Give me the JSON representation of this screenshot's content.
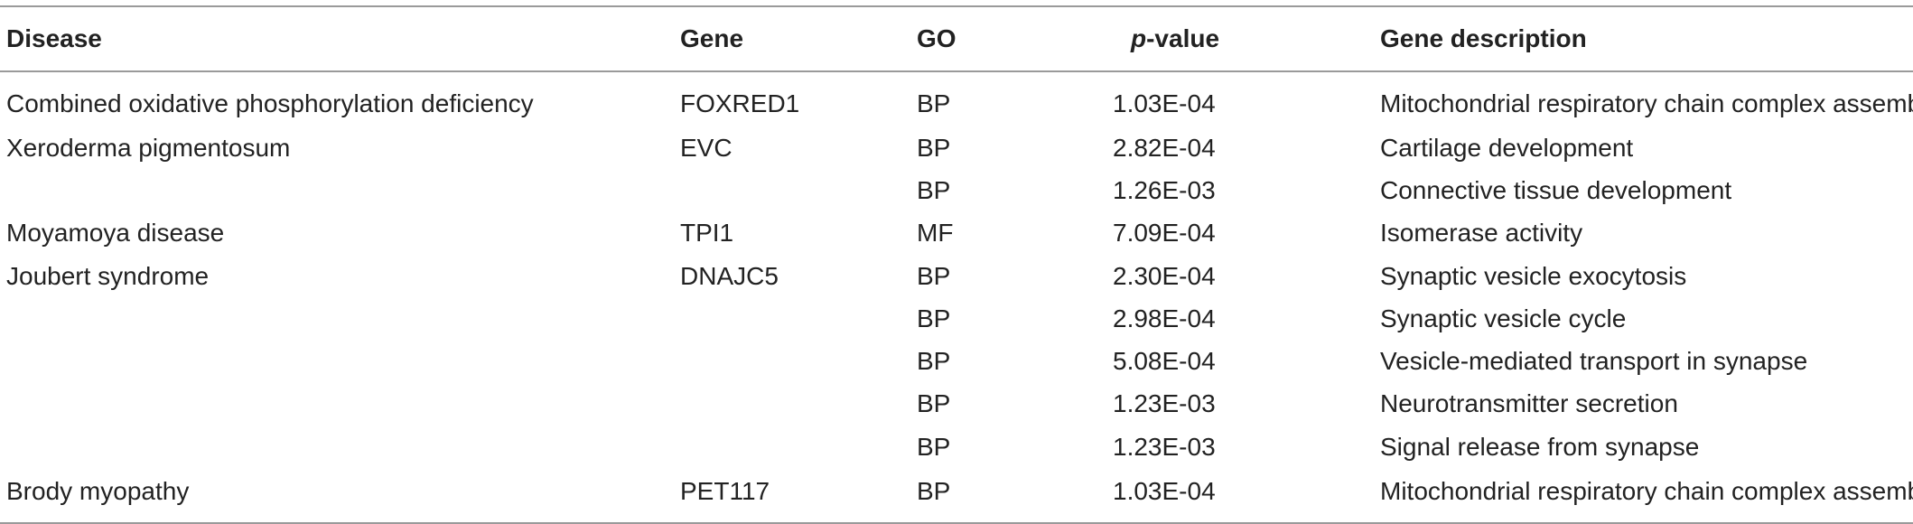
{
  "headers": {
    "disease": "Disease",
    "gene": "Gene",
    "go": "GO",
    "p_italic": "p",
    "p_rest": "-value",
    "description": "Gene description"
  },
  "rows": [
    {
      "disease": "Combined oxidative phosphorylation deficiency",
      "gene": "FOXRED1",
      "go": "BP",
      "p": "1.03E-04",
      "description": "Mitochondrial respiratory chain complex assembly"
    },
    {
      "disease": "Xeroderma pigmentosum",
      "gene": "EVC",
      "go": "BP",
      "p": "2.82E-04",
      "description": "Cartilage development"
    },
    {
      "disease": "",
      "gene": "",
      "go": "BP",
      "p": "1.26E-03",
      "description": "Connective tissue development"
    },
    {
      "disease": "Moyamoya disease",
      "gene": "TPI1",
      "go": "MF",
      "p": "7.09E-04",
      "description": "Isomerase activity"
    },
    {
      "disease": "Joubert syndrome",
      "gene": "DNAJC5",
      "go": "BP",
      "p": "2.30E-04",
      "description": "Synaptic vesicle exocytosis"
    },
    {
      "disease": "",
      "gene": "",
      "go": "BP",
      "p": "2.98E-04",
      "description": "Synaptic vesicle cycle"
    },
    {
      "disease": "",
      "gene": "",
      "go": "BP",
      "p": "5.08E-04",
      "description": "Vesicle-mediated transport in synapse"
    },
    {
      "disease": "",
      "gene": "",
      "go": "BP",
      "p": "1.23E-03",
      "description": "Neurotransmitter secretion"
    },
    {
      "disease": "",
      "gene": "",
      "go": "BP",
      "p": "1.23E-03",
      "description": "Signal release from synapse"
    },
    {
      "disease": "Brody myopathy",
      "gene": "PET117",
      "go": "BP",
      "p": "1.03E-04",
      "description": "Mitochondrial respiratory chain complex assembly"
    }
  ]
}
